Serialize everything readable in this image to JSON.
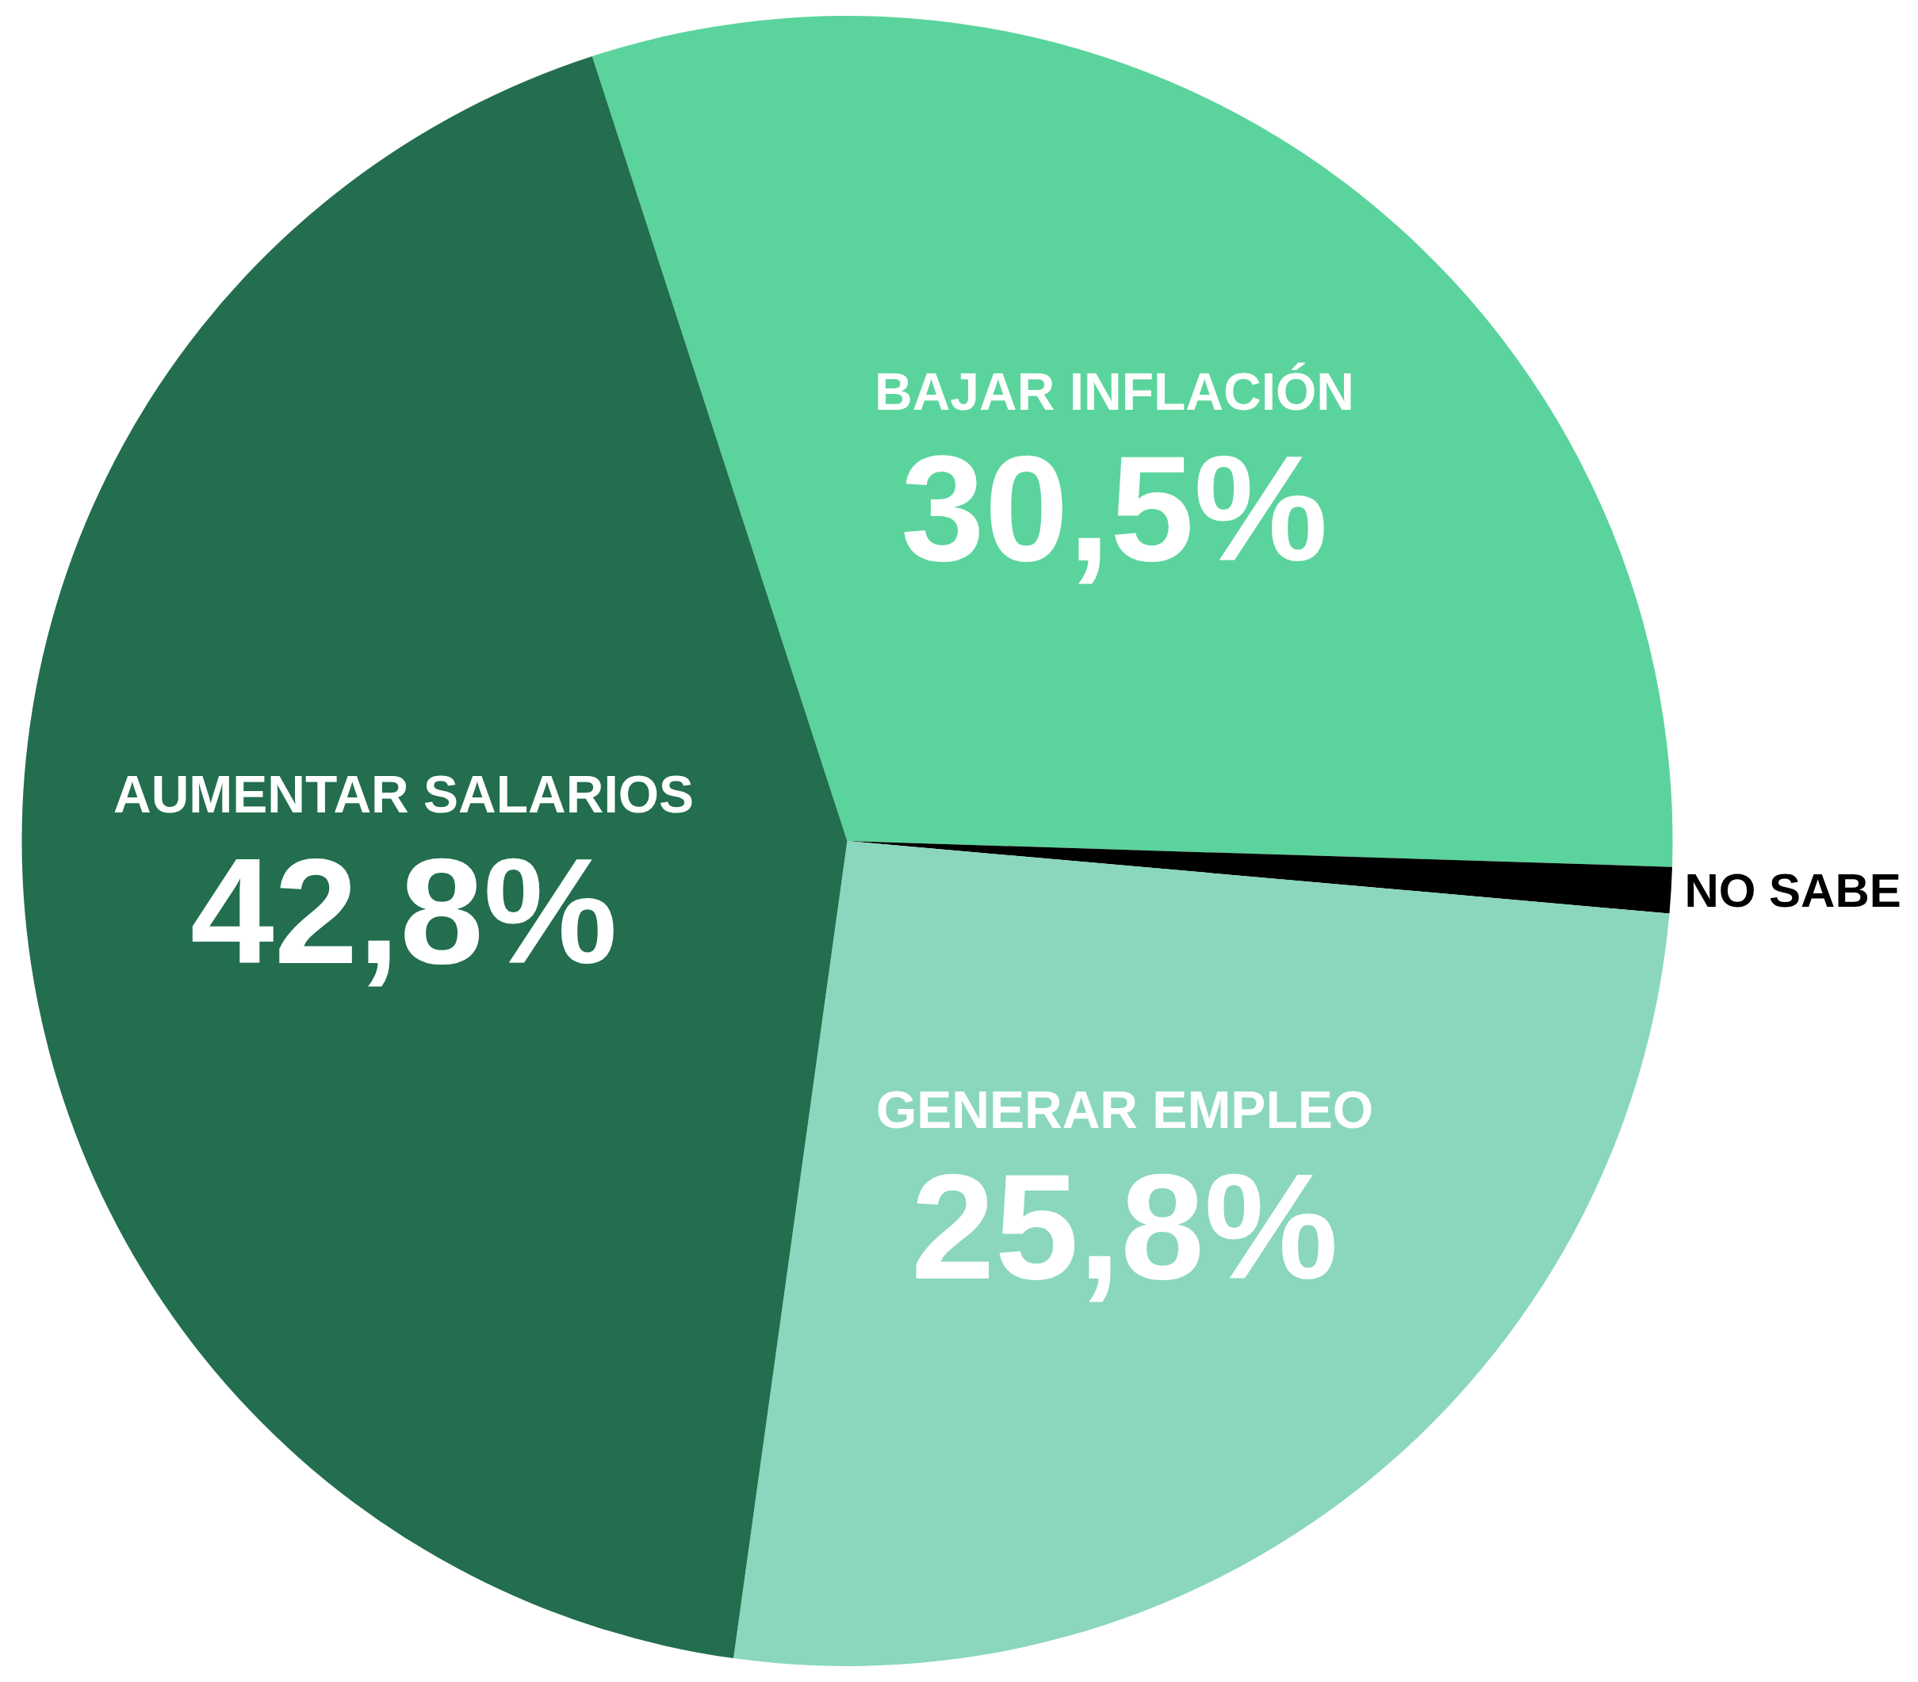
{
  "chart_data": {
    "type": "pie",
    "categories": [
      "BAJAR INFLACIÓN",
      "NO SABE",
      "GENERAR EMPLEO",
      "AUMENTAR SALARIOS"
    ],
    "values": [
      30.5,
      0.9,
      25.8,
      42.8
    ],
    "colors": [
      "#5ad49c",
      "#000000",
      "#8ad7bd",
      "#226e4f"
    ],
    "value_labels": [
      "30,5%",
      null,
      "25,8%",
      "42,8%"
    ],
    "legend": false
  }
}
